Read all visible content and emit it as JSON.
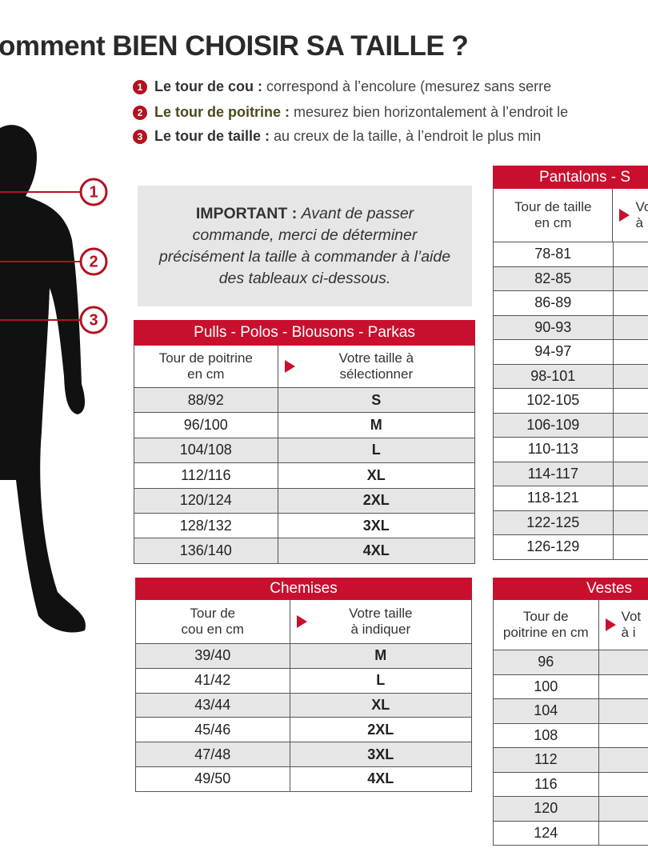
{
  "header": {
    "title": "omment BIEN CHOISIR SA TAILLE ?"
  },
  "legend": {
    "items": [
      {
        "number": "1",
        "term": "Le tour de cou :",
        "text": "correspond à l’encolure (mesurez sans serre"
      },
      {
        "number": "2",
        "term": "Le tour de poitrine :",
        "text": "mesurez bien horizontalement à l’endroit le"
      },
      {
        "number": "3",
        "term": "Le tour de taille :",
        "text": "au creux de la taille, à l’endroit le plus min"
      }
    ]
  },
  "figure": {
    "markers": [
      "1",
      "2",
      "3"
    ]
  },
  "notice": {
    "label": "IMPORTANT :",
    "text": "Avant de passer commande, merci de déterminer précisément la taille à commander à l’aide des tableaux ci-dessous."
  },
  "tables": {
    "pulls": {
      "title": "Pulls - Polos - Blousons - Parkas",
      "header": [
        [
          "Tour de poitrine",
          "en cm"
        ],
        [
          "Votre taille à",
          "sélectionner"
        ]
      ],
      "rows": [
        [
          "88/92",
          "S"
        ],
        [
          "96/100",
          "M"
        ],
        [
          "104/108",
          "L"
        ],
        [
          "112/116",
          "XL"
        ],
        [
          "120/124",
          "2XL"
        ],
        [
          "128/132",
          "3XL"
        ],
        [
          "136/140",
          "4XL"
        ]
      ]
    },
    "chemises": {
      "title": "Chemises",
      "header": [
        [
          "Tour de",
          "cou en cm"
        ],
        [
          "Votre taille",
          "à indiquer"
        ]
      ],
      "rows": [
        [
          "39/40",
          "M"
        ],
        [
          "41/42",
          "L"
        ],
        [
          "43/44",
          "XL"
        ],
        [
          "45/46",
          "2XL"
        ],
        [
          "47/48",
          "3XL"
        ],
        [
          "49/50",
          "4XL"
        ]
      ]
    },
    "pantalons": {
      "title": "Pantalons - S",
      "header": [
        [
          "Tour de taille",
          "en cm"
        ],
        [
          "Vo",
          "à"
        ]
      ],
      "rows": [
        [
          "78-81"
        ],
        [
          "82-85"
        ],
        [
          "86-89"
        ],
        [
          "90-93"
        ],
        [
          "94-97"
        ],
        [
          "98-101"
        ],
        [
          "102-105"
        ],
        [
          "106-109"
        ],
        [
          "110-113"
        ],
        [
          "114-117"
        ],
        [
          "118-121"
        ],
        [
          "122-125"
        ],
        [
          "126-129"
        ]
      ]
    },
    "vestes": {
      "title": "Vestes",
      "header": [
        [
          "Tour de",
          "poitrine en cm"
        ],
        [
          "Vot",
          "à i"
        ]
      ],
      "rows": [
        [
          "96"
        ],
        [
          "100"
        ],
        [
          "104"
        ],
        [
          "108"
        ],
        [
          "112"
        ],
        [
          "116"
        ],
        [
          "120"
        ],
        [
          "124"
        ]
      ]
    }
  }
}
